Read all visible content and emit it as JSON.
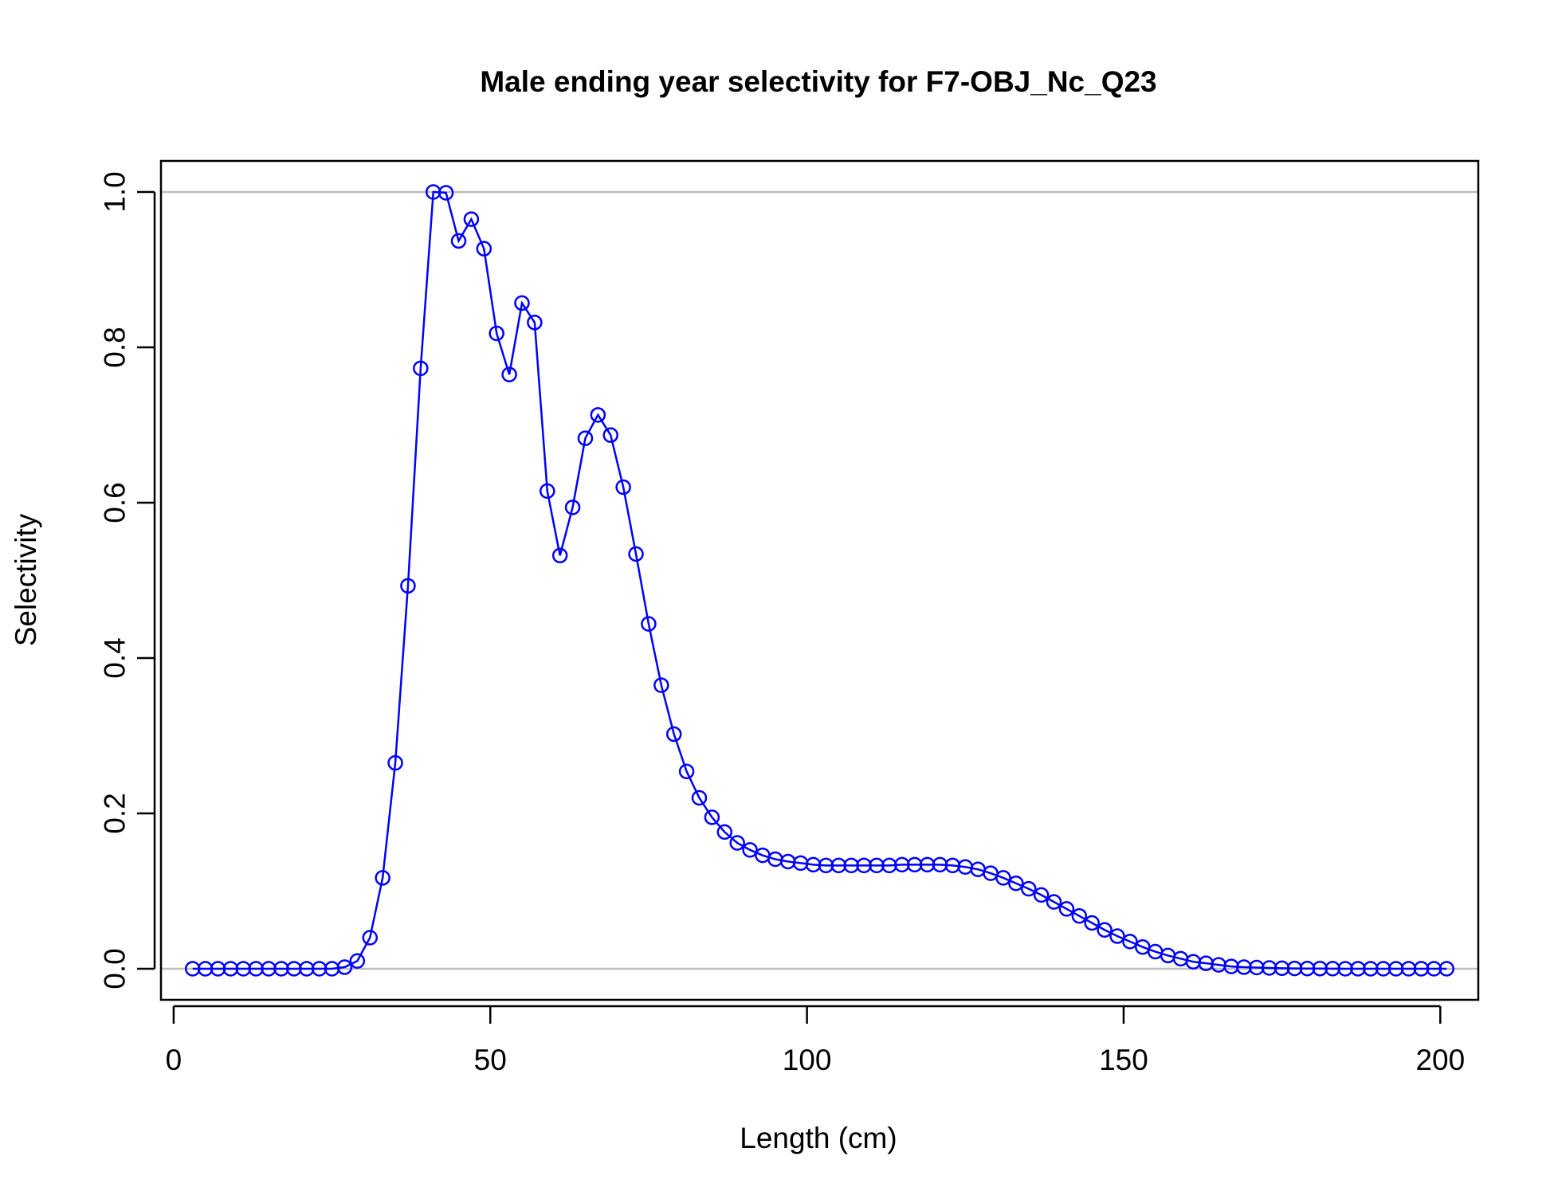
{
  "chart_data": {
    "type": "line",
    "title": "Male ending year selectivity for F7-OBJ_Nc_Q23",
    "xlabel": "Length (cm)",
    "ylabel": "Selectivity",
    "xlim": [
      -2,
      206
    ],
    "ylim": [
      -0.04,
      1.04
    ],
    "xticks": [
      0,
      50,
      100,
      150,
      200
    ],
    "xtick_labels": [
      "0",
      "50",
      "100",
      "150",
      "200"
    ],
    "yticks": [
      0.0,
      0.2,
      0.4,
      0.6,
      0.8,
      1.0
    ],
    "ytick_labels": [
      "0.0",
      "0.2",
      "0.4",
      "0.6",
      "0.8",
      "1.0"
    ],
    "reference_lines": [
      0,
      1
    ],
    "colors": {
      "series": "#0000ff",
      "reference": "#bebebe",
      "axis": "#000000"
    },
    "marker": "open-circle",
    "series": [
      {
        "x": [
          3,
          5,
          7,
          9,
          11,
          13,
          15,
          17,
          19,
          21,
          23,
          25,
          27,
          29,
          31,
          33,
          35,
          37,
          39,
          41,
          43,
          45,
          47,
          49,
          51,
          53,
          55,
          57,
          59,
          61,
          63,
          65,
          67,
          69,
          71,
          73,
          75,
          77,
          79,
          81,
          83,
          85,
          87,
          89,
          91,
          93,
          95,
          97,
          99,
          101,
          103,
          105,
          107,
          109,
          111,
          113,
          115,
          117,
          119,
          121,
          123,
          125,
          127,
          129,
          131,
          133,
          135,
          137,
          139,
          141,
          143,
          145,
          147,
          149,
          151,
          153,
          155,
          157,
          159,
          161,
          163,
          165,
          167,
          169,
          171,
          173,
          175,
          177,
          179,
          181,
          183,
          185,
          187,
          189,
          191,
          193,
          195,
          197,
          199,
          201
        ],
        "y": [
          0,
          0,
          0,
          0,
          0,
          0,
          0,
          0,
          0,
          0,
          0,
          0,
          0.002,
          0.01,
          0.04,
          0.117,
          0.265,
          0.493,
          0.773,
          1.0,
          0.999,
          0.937,
          0.965,
          0.927,
          0.818,
          0.765,
          0.857,
          0.832,
          0.615,
          0.532,
          0.594,
          0.683,
          0.713,
          0.687,
          0.62,
          0.534,
          0.444,
          0.365,
          0.302,
          0.254,
          0.22,
          0.195,
          0.176,
          0.162,
          0.153,
          0.146,
          0.141,
          0.138,
          0.136,
          0.134,
          0.133,
          0.133,
          0.133,
          0.133,
          0.133,
          0.133,
          0.134,
          0.134,
          0.134,
          0.134,
          0.133,
          0.131,
          0.128,
          0.123,
          0.117,
          0.11,
          0.103,
          0.095,
          0.086,
          0.077,
          0.068,
          0.059,
          0.05,
          0.042,
          0.035,
          0.028,
          0.022,
          0.017,
          0.013,
          0.009,
          0.007,
          0.005,
          0.003,
          0.002,
          0.0015,
          0.001,
          0.0006,
          0.0004,
          0.0003,
          0.0002,
          0.0001,
          0,
          0,
          0,
          0,
          0,
          0,
          0,
          0,
          0
        ]
      }
    ]
  }
}
